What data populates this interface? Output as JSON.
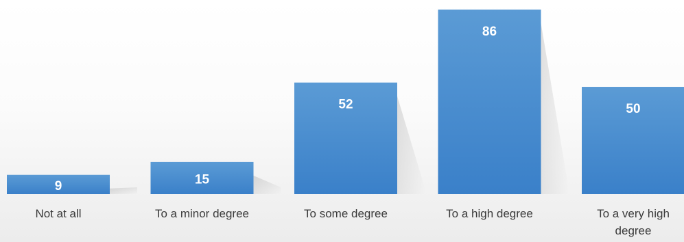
{
  "chart_data": {
    "type": "bar",
    "categories": [
      "Not at all",
      "To a minor degree",
      "To some degree",
      "To a high degree",
      "To a very high degree"
    ],
    "values": [
      9,
      15,
      52,
      86,
      50
    ],
    "data_labels": true,
    "grid": false,
    "legend": "none"
  },
  "colors": {
    "bar_top": "#5b9bd5",
    "bar_bottom": "#3a80c9",
    "data_label": "#ffffff",
    "category_label": "#3a3a3a"
  }
}
